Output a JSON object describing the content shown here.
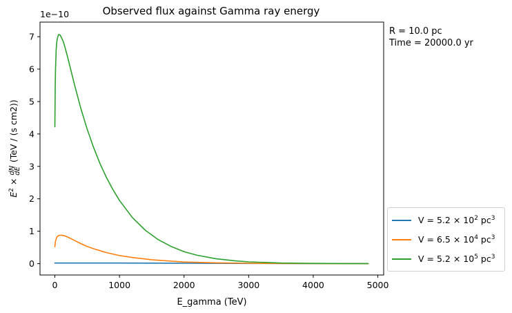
{
  "chart_data": {
    "type": "line",
    "title": "Observed flux against Gamma ray energy",
    "xlabel": "E_gamma (TeV)",
    "ylabel_prefix": "E",
    "ylabel_suffix": "(TeV / (s cm2))",
    "offset_text": "1e−10",
    "xlim": [
      -230,
      5090
    ],
    "ylim": [
      -0.35,
      7.45
    ],
    "xticks": [
      0,
      1000,
      2000,
      3000,
      4000,
      5000
    ],
    "yticks": [
      0,
      1,
      2,
      3,
      4,
      5,
      6,
      7
    ],
    "colors": {
      "blue": "#1f77b4",
      "orange": "#ff7f0e",
      "green": "#2ca02c"
    },
    "series": [
      {
        "name": "V = 5.2 × 10^2 pc^3",
        "mantissa": "5.2",
        "exponent": "2",
        "color": "#1f77b4",
        "x": [
          0,
          500,
          1000,
          2000,
          3000,
          4000,
          4850
        ],
        "y": [
          0.02,
          0.02,
          0.018,
          0.012,
          0.006,
          0.003,
          0.002
        ]
      },
      {
        "name": "V = 6.5 × 10^4 pc^3",
        "mantissa": "6.5",
        "exponent": "4",
        "color": "#ff7f0e",
        "x": [
          0,
          10,
          30,
          60,
          100,
          150,
          200,
          300,
          400,
          500,
          600,
          700,
          800,
          1000,
          1200,
          1500,
          2000,
          2500,
          3000,
          3500,
          4000,
          4850
        ],
        "y": [
          0.52,
          0.7,
          0.82,
          0.87,
          0.88,
          0.86,
          0.82,
          0.72,
          0.62,
          0.53,
          0.46,
          0.4,
          0.34,
          0.25,
          0.19,
          0.12,
          0.05,
          0.025,
          0.012,
          0.006,
          0.003,
          0.001
        ]
      },
      {
        "name": "V = 5.2 × 10^5 pc^3",
        "mantissa": "5.2",
        "exponent": "5",
        "color": "#2ca02c",
        "x": [
          0,
          5,
          10,
          20,
          30,
          45,
          60,
          80,
          100,
          130,
          160,
          200,
          250,
          300,
          400,
          500,
          600,
          700,
          800,
          900,
          1000,
          1200,
          1400,
          1600,
          1800,
          2000,
          2200,
          2500,
          2800,
          3000,
          3500,
          4000,
          4500,
          4850
        ],
        "y": [
          4.22,
          5.4,
          6.0,
          6.6,
          6.85,
          7.0,
          7.07,
          7.05,
          6.98,
          6.85,
          6.65,
          6.35,
          5.95,
          5.55,
          4.8,
          4.15,
          3.58,
          3.08,
          2.65,
          2.28,
          1.95,
          1.42,
          1.03,
          0.74,
          0.53,
          0.37,
          0.26,
          0.15,
          0.085,
          0.055,
          0.02,
          0.008,
          0.003,
          0.002
        ]
      }
    ]
  },
  "annotations": {
    "radius": "R = 10.0 pc",
    "time": "Time = 20000.0 yr"
  },
  "legend": {
    "prefix": "V = ",
    "times": " × 10",
    "unit": " pc",
    "unit_exp": "3"
  }
}
